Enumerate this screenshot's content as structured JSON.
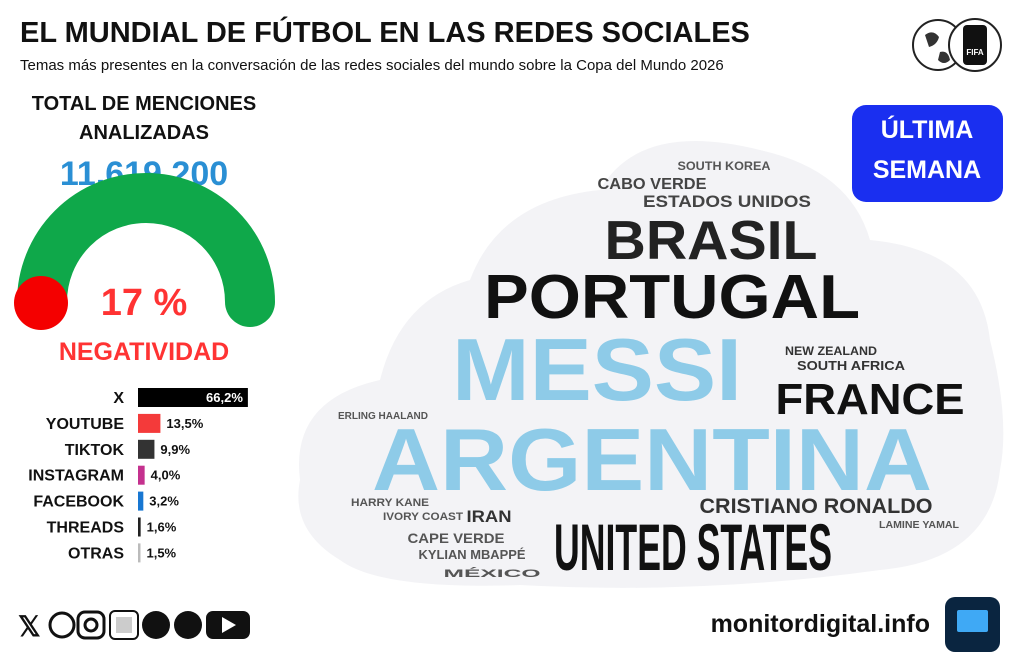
{
  "header": {
    "title": "EL MUNDIAL DE FÚTBOL EN LAS REDES SOCIALES",
    "subtitle": "Temas más presentes en la conversación de las redes sociales del mundo sobre la Copa del Mundo 2026"
  },
  "total": {
    "label": "TOTAL DE MENCIONES ANALIZADAS",
    "value": "11.619.200"
  },
  "gauge": {
    "value_label": "17 %",
    "label": "NEGATIVIDAD"
  },
  "badge": "ÚLTIMA SEMANA",
  "platforms": {
    "type": "bar",
    "categories": [
      "X",
      "YOUTUBE",
      "TIKTOK",
      "INSTAGRAM",
      "FACEBOOK",
      "THREADS",
      "OTRAS"
    ],
    "values": [
      66.2,
      13.5,
      9.9,
      4.0,
      3.2,
      1.6,
      1.5
    ],
    "value_labels": [
      "66,2%",
      "13,5%",
      "9,9%",
      "4,0%",
      "3,2%",
      "1,6%",
      "1,5%"
    ],
    "colors": [
      "#000000",
      "#f43a3a",
      "#333333",
      "#c4318e",
      "#1877d2",
      "#222222",
      "#bbbbbb"
    ]
  },
  "word_cloud": {
    "words": [
      "SOUTH KOREA",
      "CABO VERDE",
      "ESTADOS UNIDOS",
      "BRASIL",
      "PORTUGAL",
      "MESSI",
      "NEW ZEALAND",
      "SOUTH AFRICA",
      "FRANCE",
      "ERLING HAALAND",
      "ARGENTINA",
      "HARRY KANE",
      "CRISTIANO RONALDO",
      "IVORY COAST",
      "IRAN",
      "LAMINE YAMAL",
      "CAPE VERDE",
      "MÉXICO",
      "UNITED STATES",
      "KYLIAN MBAPPÉ"
    ]
  },
  "footer": {
    "site": "monitordigital.info"
  }
}
